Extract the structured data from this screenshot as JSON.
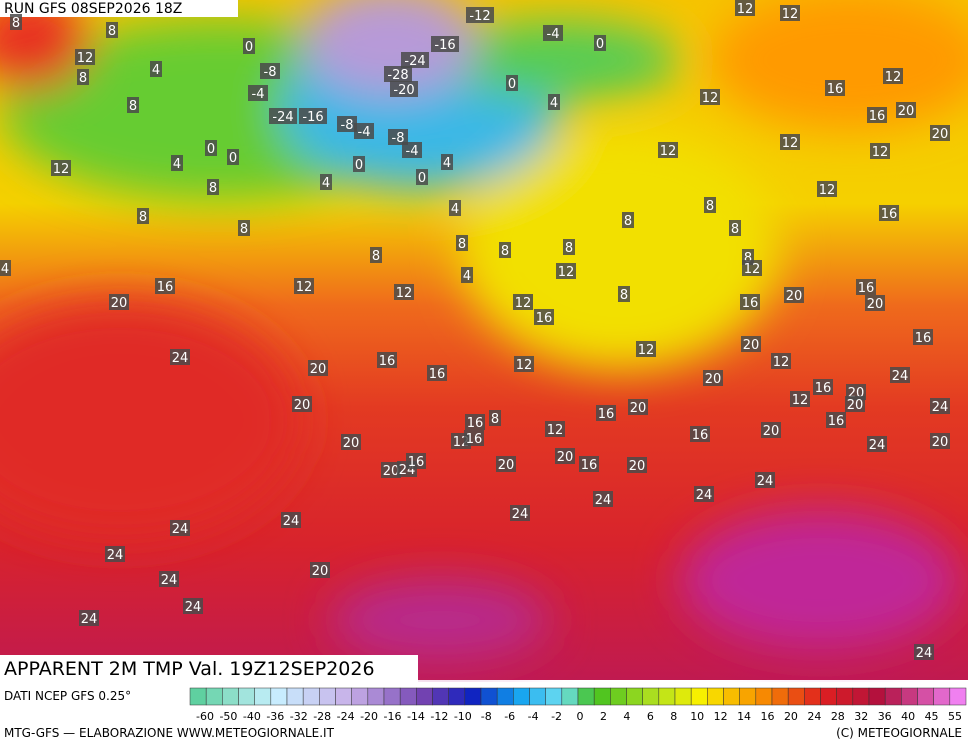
{
  "header": {
    "run": "RUN GFS 08SEP2026 18Z"
  },
  "map": {
    "labels": [
      "12",
      "12",
      "-12",
      "-4",
      "-16",
      "0",
      "0",
      "-24",
      "-8",
      "-28",
      "0",
      "-20",
      "-4",
      "4",
      "-24",
      "-16",
      "-8",
      "-4",
      "-8",
      "-4",
      "0",
      "0",
      "0",
      "4",
      "0",
      "4",
      "12",
      "4",
      "8",
      "8",
      "8",
      "4",
      "12",
      "12",
      "12",
      "12",
      "16",
      "8",
      "8",
      "8",
      "8",
      "8",
      "8",
      "8",
      "8",
      "12",
      "4",
      "16",
      "12",
      "12",
      "20",
      "12",
      "8",
      "12",
      "16",
      "20",
      "16",
      "20",
      "16",
      "16",
      "24",
      "20",
      "16",
      "12",
      "12",
      "20",
      "12",
      "16",
      "20",
      "16",
      "20",
      "24",
      "20",
      "12",
      "20",
      "24",
      "16",
      "20",
      "8",
      "16",
      "12",
      "16",
      "20",
      "16",
      "24",
      "20",
      "20",
      "12",
      "16",
      "20",
      "24",
      "16",
      "20",
      "20",
      "16",
      "20",
      "24",
      "24",
      "24",
      "24",
      "24",
      "24",
      "24",
      "20",
      "24",
      "24",
      "24",
      "24",
      "12",
      "16",
      "12",
      "16",
      "20",
      "20",
      "12",
      "8",
      "4",
      "8",
      "8",
      "8",
      "4"
    ]
  },
  "footer": {
    "field": "APPARENT 2M TMP Val. 19Z12SEP2026",
    "source": "DATI NCEP GFS 0.25°",
    "credit": "MTG-GFS — ELABORAZIONE WWW.METEOGIORNALE.IT",
    "copyright": "(C) METEOGIORNALE"
  },
  "legend": {
    "ticks": [
      "-60",
      "-50",
      "-40",
      "-36",
      "-32",
      "-28",
      "-24",
      "-20",
      "-16",
      "-14",
      "-12",
      "-10",
      "-8",
      "-6",
      "-4",
      "-2",
      "0",
      "2",
      "4",
      "6",
      "8",
      "10",
      "12",
      "14",
      "16",
      "20",
      "24",
      "28",
      "32",
      "36",
      "40",
      "45",
      "55"
    ]
  }
}
